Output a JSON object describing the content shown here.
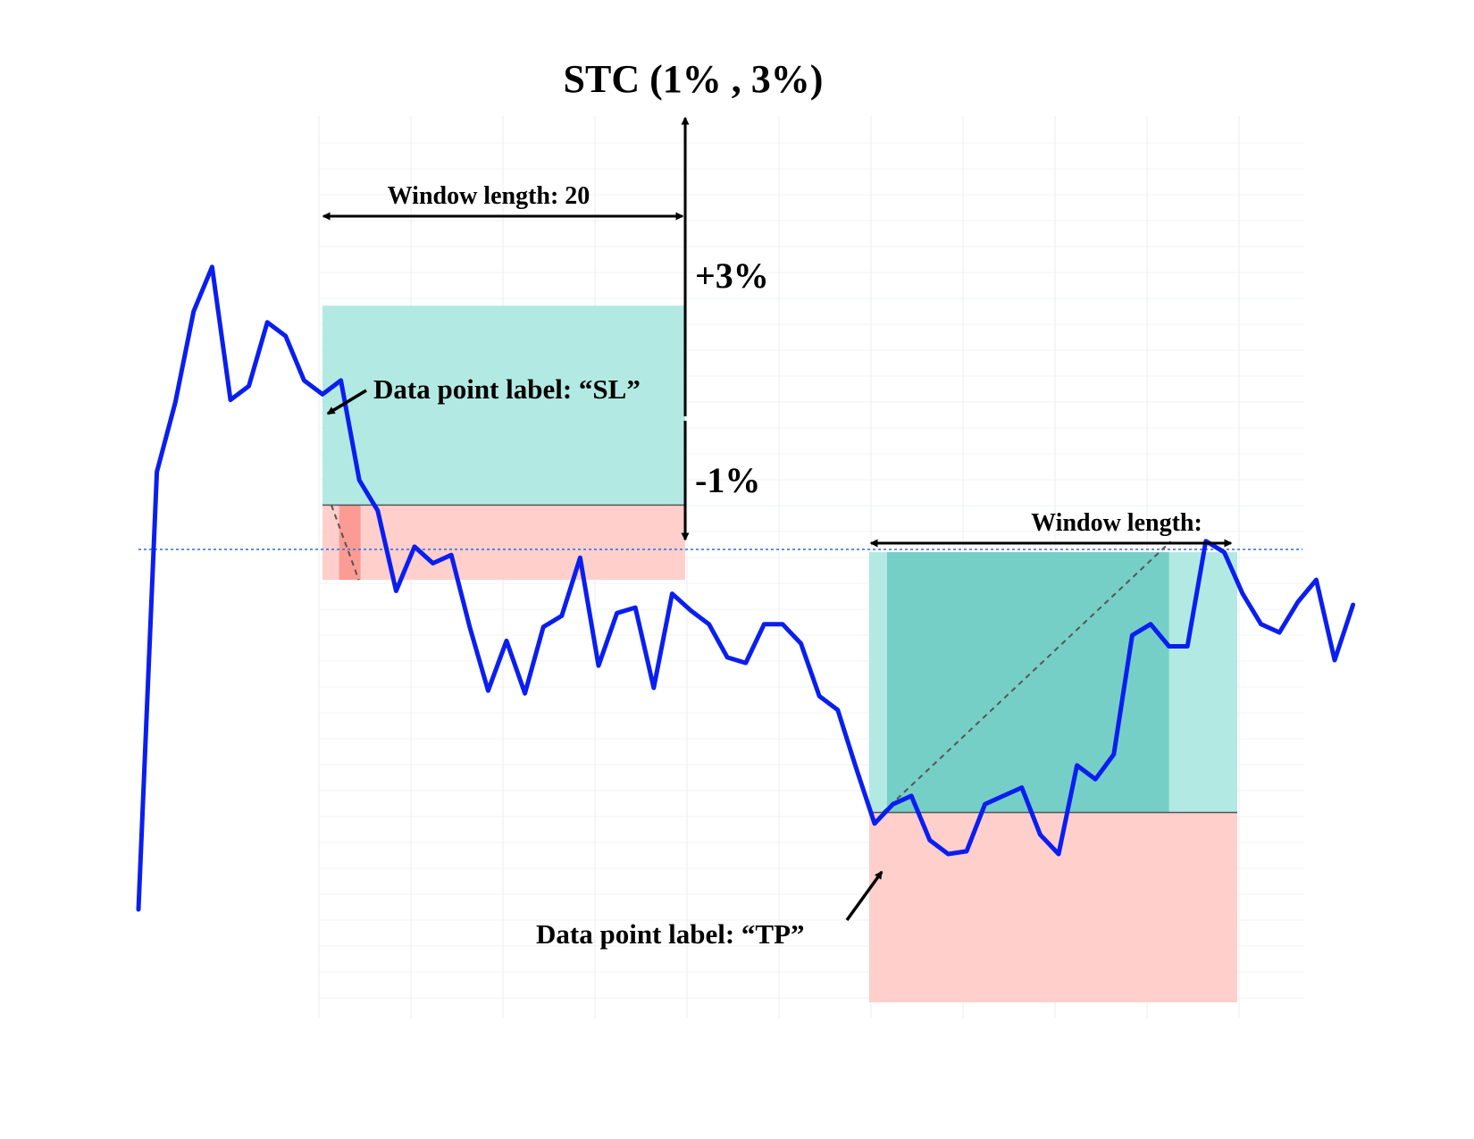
{
  "title": "STC (1% , 3%)",
  "annotations": {
    "window_length_left": "Window length: 20",
    "window_length_right": "Window length:",
    "upper_pct": "+3%",
    "lower_pct": "-1%",
    "sl_label": "Data point label: “SL”",
    "tp_label": "Data point label: “TP”"
  },
  "colors": {
    "price_line": "#0a1ef0",
    "take_profit_zone": "#b3e9e3",
    "take_profit_zone_dark": "#76cfc6",
    "stop_loss_zone": "#ffcfcc",
    "stop_loss_zone_dark": "#fb9b94",
    "reference_line": "#2a6ce0"
  },
  "chart_data": {
    "type": "line",
    "series": [
      {
        "values": [
          0,
          158,
          183,
          216,
          232,
          184,
          189,
          212,
          207,
          191,
          186,
          191,
          155,
          144,
          115,
          131,
          125,
          128,
          102,
          79,
          97,
          78,
          102,
          106,
          127,
          88,
          107,
          109,
          80,
          114,
          108,
          103,
          91,
          89,
          103,
          103,
          96,
          77,
          72,
          51,
          31,
          38,
          41,
          25,
          20,
          21,
          38,
          41,
          44,
          27,
          20,
          52,
          47,
          56,
          99,
          103,
          95,
          95,
          133,
          129,
          114,
          103,
          100,
          111,
          119,
          90,
          110
        ]
      }
    ],
    "ylim": [
      0,
      260
    ],
    "reference_level": 130,
    "windows": [
      {
        "start_index": 10,
        "length": 20,
        "entry_value": 146,
        "take_profit_level": 218,
        "stop_loss_level": 119,
        "hit_index": 11,
        "outcome": "SL"
      },
      {
        "start_index": 40,
        "length": 20,
        "entry_value": 35,
        "take_profit_level": 129,
        "stop_loss_level": 0,
        "hit_index": 56,
        "outcome": "TP"
      }
    ]
  }
}
